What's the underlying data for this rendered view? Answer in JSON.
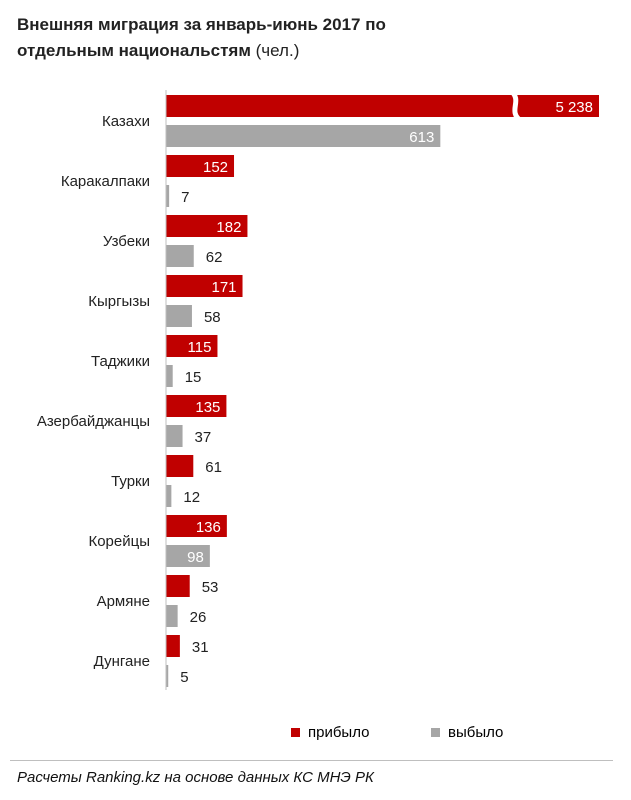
{
  "title": {
    "line1": "Внешняя миграция  за январь-июнь  2017 по",
    "line2": "отдельным  национальстям",
    "unit": "(чел.)"
  },
  "chart_data": {
    "type": "bar",
    "orientation": "horizontal",
    "categories": [
      "Казахи",
      "Каракалпаки",
      "Узбеки",
      "Кыргызы",
      "Таджики",
      "Азербайджанцы",
      "Турки",
      "Корейцы",
      "Армяне",
      "Дунгане"
    ],
    "series": [
      {
        "name": "прибыло",
        "color": "#c00000",
        "values": [
          5238,
          152,
          182,
          171,
          115,
          135,
          61,
          136,
          53,
          31
        ],
        "labels": [
          "5 238",
          "152",
          "182",
          "171",
          "115",
          "135",
          "61",
          "136",
          "53",
          "31"
        ]
      },
      {
        "name": "выбыло",
        "color": "#a6a6a6",
        "values": [
          613,
          7,
          62,
          58,
          15,
          37,
          12,
          98,
          26,
          5
        ],
        "labels": [
          "613",
          "7",
          "62",
          "58",
          "15",
          "37",
          "12",
          "98",
          "26",
          "5"
        ]
      }
    ],
    "axis_break": {
      "category": "Казахи",
      "series": "прибыло"
    },
    "legend_position": "bottom",
    "grid": false
  },
  "legend": {
    "arrived": "прибыло",
    "departed": "выбыло"
  },
  "source": "Расчеты Ranking.kz на основе данных КС МНЭ РК"
}
